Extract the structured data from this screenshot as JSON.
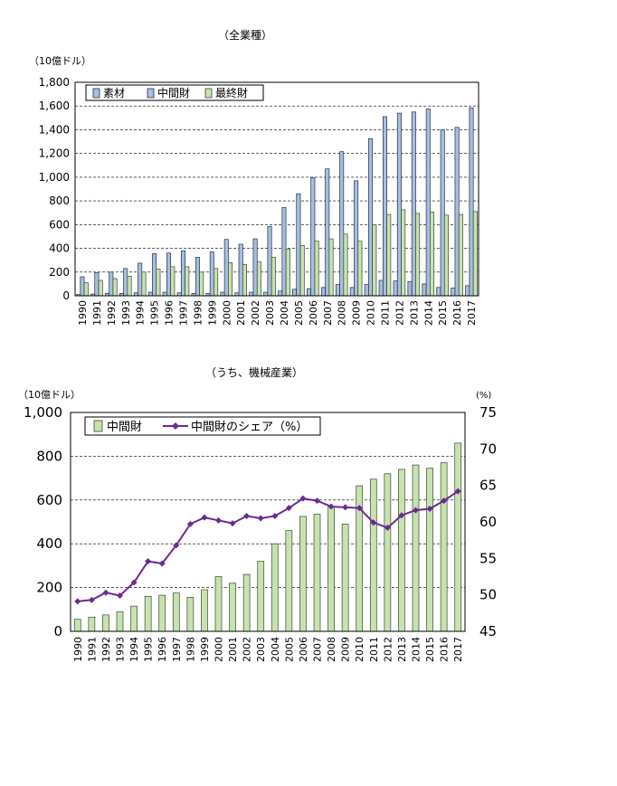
{
  "colors": {
    "bar_blue": "#a9bedc",
    "bar_blue_stroke": "#1f3048",
    "bar_green": "#c7e2b0",
    "bar_green_stroke": "#3a4a2e",
    "line_purple": "#6a2b93",
    "grid": "#000000",
    "axis": "#000000"
  },
  "chart_data": [
    {
      "type": "bar",
      "title": "（全業種）",
      "yunit": "（10億ドル）",
      "ylim": [
        0,
        1800
      ],
      "yticks": [
        "0",
        "200",
        "400",
        "600",
        "800",
        "1,000",
        "1,200",
        "1,400",
        "1,600",
        "1,800"
      ],
      "grid": true,
      "legend": "top-left",
      "categories": [
        "1990",
        "1991",
        "1992",
        "1993",
        "1994",
        "1995",
        "1996",
        "1997",
        "1998",
        "1999",
        "2000",
        "2001",
        "2002",
        "2003",
        "2004",
        "2005",
        "2006",
        "2007",
        "2008",
        "2009",
        "2010",
        "2011",
        "2012",
        "2013",
        "2014",
        "2015",
        "2016",
        "2017"
      ],
      "series": [
        {
          "name": "素材",
          "values": [
            10,
            15,
            20,
            20,
            25,
            30,
            30,
            25,
            20,
            20,
            30,
            25,
            30,
            30,
            40,
            55,
            60,
            70,
            95,
            70,
            95,
            130,
            125,
            120,
            100,
            70,
            65,
            85
          ]
        },
        {
          "name": "中間財",
          "values": [
            160,
            195,
            200,
            230,
            275,
            355,
            360,
            380,
            325,
            370,
            475,
            435,
            480,
            585,
            745,
            860,
            995,
            1070,
            1215,
            970,
            1325,
            1510,
            1540,
            1550,
            1575,
            1400,
            1420,
            1585
          ]
        },
        {
          "name": "最終財",
          "values": [
            110,
            130,
            145,
            165,
            200,
            225,
            245,
            245,
            200,
            230,
            280,
            265,
            285,
            325,
            395,
            425,
            460,
            480,
            520,
            460,
            600,
            685,
            725,
            695,
            705,
            680,
            685,
            710
          ]
        }
      ]
    },
    {
      "type": "bar",
      "title": "（うち、機械産業）",
      "yunit": "（10億ドル）",
      "y2unit": "(%)",
      "ylim": [
        0,
        1000
      ],
      "yticks": [
        "0",
        "200",
        "400",
        "600",
        "800",
        "1,000"
      ],
      "y2lim": [
        45,
        75
      ],
      "y2ticks": [
        "45",
        "50",
        "55",
        "60",
        "65",
        "70",
        "75"
      ],
      "grid": true,
      "legend": "top-left",
      "categories": [
        "1990",
        "1991",
        "1992",
        "1993",
        "1994",
        "1995",
        "1996",
        "1997",
        "1998",
        "1999",
        "2000",
        "2001",
        "2002",
        "2003",
        "2004",
        "2005",
        "2006",
        "2007",
        "2008",
        "2009",
        "2010",
        "2011",
        "2012",
        "2013",
        "2014",
        "2015",
        "2016",
        "2017"
      ],
      "series": [
        {
          "name": "中間財",
          "type": "bar",
          "values": [
            55,
            65,
            75,
            90,
            115,
            160,
            165,
            175,
            155,
            190,
            250,
            220,
            260,
            320,
            400,
            460,
            525,
            535,
            570,
            490,
            665,
            695,
            720,
            740,
            760,
            745,
            770,
            860
          ]
        },
        {
          "name": "中間財のシェア（%）",
          "type": "line",
          "values": [
            49.1,
            49.3,
            50.3,
            49.9,
            51.7,
            54.6,
            54.3,
            56.8,
            59.7,
            60.6,
            60.2,
            59.8,
            60.8,
            60.5,
            60.8,
            61.9,
            63.2,
            62.9,
            62.1,
            62.0,
            61.9,
            59.9,
            59.2,
            60.9,
            61.6,
            61.8,
            62.9,
            64.2
          ]
        }
      ]
    }
  ]
}
